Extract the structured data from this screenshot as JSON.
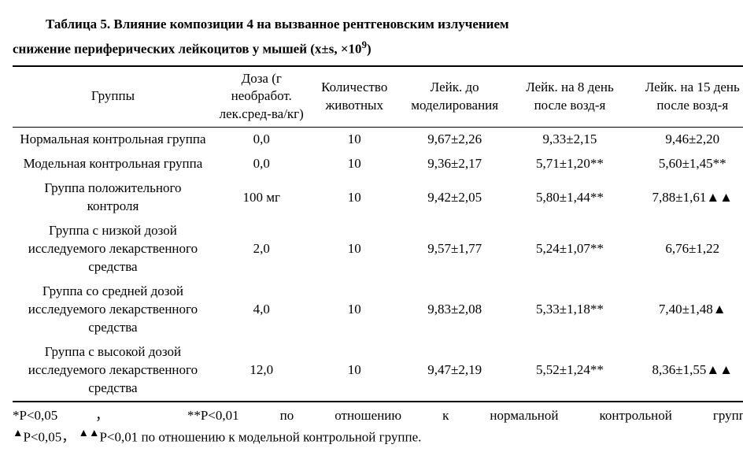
{
  "title_line1": "Таблица 5. Влияние композиции 4 на вызванное рентгеновским излучением",
  "title_line2_a": "снижение периферических лейкоцитов у мышей (x±s, ×10",
  "title_line2_sup": "9",
  "title_line2_b": ")",
  "columns": {
    "group": "Группы",
    "dose": "Доза (г необработ. лек.сред-ва/кг)",
    "n": "Количество животных",
    "v1": "Лейк. до моделирования",
    "v2": "Лейк. на 8 день после возд-я",
    "v3": "Лейк. на 15 день после возд-я"
  },
  "rows": [
    {
      "group": "Нормальная контрольная группа",
      "dose": "0,0",
      "n": "10",
      "v1": "9,67±2,26",
      "v2": "9,33±2,15",
      "v3": "9,46±2,20"
    },
    {
      "group": "Модельная контрольная группа",
      "dose": "0,0",
      "n": "10",
      "v1": "9,36±2,17",
      "v2": "5,71±1,20**",
      "v3": "5,60±1,45**"
    },
    {
      "group": "Группа положительного контроля",
      "dose": "100 мг",
      "n": "10",
      "v1": "9,42±2,05",
      "v2": "5,80±1,44**",
      "v3": "7,88±1,61▲▲"
    },
    {
      "group": "Группа с низкой дозой исследуемого лекарственного средства",
      "dose": "2,0",
      "n": "10",
      "v1": "9,57±1,77",
      "v2": "5,24±1,07**",
      "v3": "6,76±1,22"
    },
    {
      "group": "Группа со средней дозой исследуемого лекарственного средства",
      "dose": "4,0",
      "n": "10",
      "v1": "9,83±2,08",
      "v2": "5,33±1,18**",
      "v3": "7,40±1,48▲"
    },
    {
      "group": "Группа с высокой дозой исследуемого лекарственного средства",
      "dose": "12,0",
      "n": "10",
      "v1": "9,47±2,19",
      "v2": "5,52±1,24**",
      "v3": "8,36±1,55▲▲"
    }
  ],
  "footnote1_a": "*P<0,05，",
  "footnote1_b": "**P<0,01",
  "footnote1_c": "по",
  "footnote1_d": "отношению",
  "footnote1_e": "к",
  "footnote1_f": "нормальной",
  "footnote1_g": "контрольной",
  "footnote1_h": "группе;",
  "footnote2_tri1": "▲",
  "footnote2_a": "P<0,05，",
  "footnote2_tri2": "▲▲",
  "footnote2_b": "P<0,01 по отношению к модельной контрольной группе."
}
